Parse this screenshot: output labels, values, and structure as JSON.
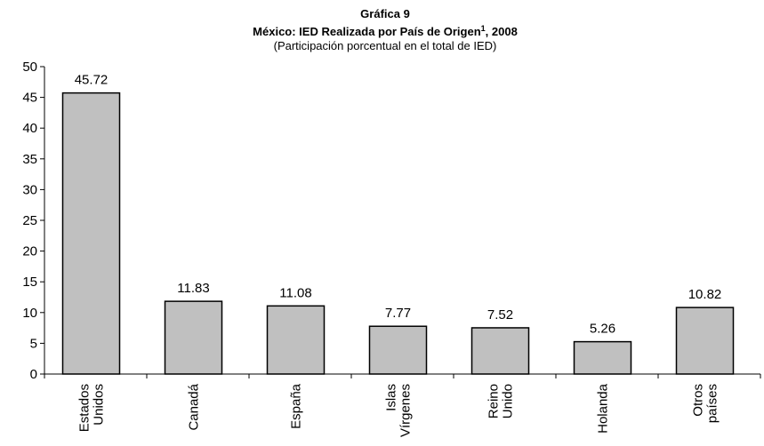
{
  "chart_data": {
    "type": "bar",
    "title": "Gráfica 9",
    "subtitle": {
      "text": "México: IED Realizada por País de Origen",
      "note": "1",
      "suffix": ", 2008"
    },
    "caption": "(Participación porcentual en el total de IED)",
    "categories": [
      [
        "Estados",
        "Unidos"
      ],
      [
        "Canadá"
      ],
      [
        "España"
      ],
      [
        "Islas",
        "Vírgenes"
      ],
      [
        "Reino",
        "Unido"
      ],
      [
        "Holanda"
      ],
      [
        "Otros",
        "países"
      ]
    ],
    "values": [
      45.72,
      11.83,
      11.08,
      7.77,
      7.52,
      5.26,
      10.82
    ],
    "color": "#c0c0c0",
    "ylim": [
      0,
      50
    ],
    "yticks": [
      0,
      5,
      10,
      15,
      20,
      25,
      30,
      35,
      40,
      45,
      50
    ]
  }
}
